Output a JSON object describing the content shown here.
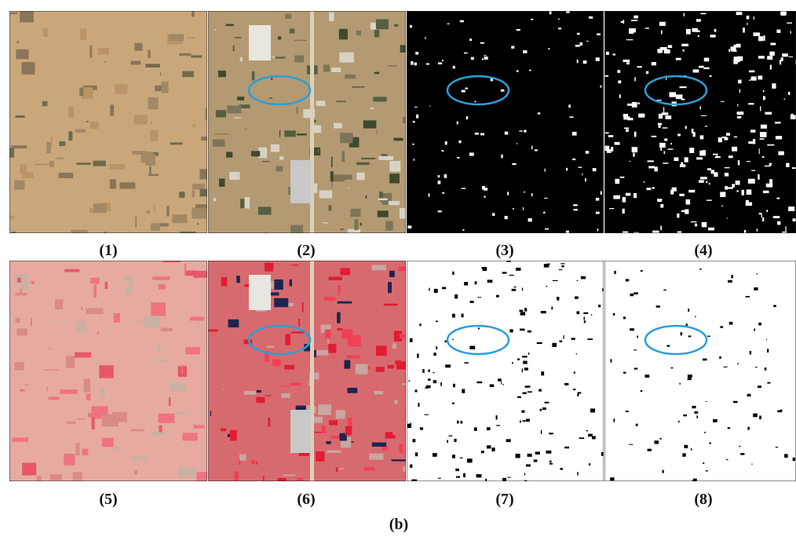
{
  "panels": [
    {
      "label": "(1)"
    },
    {
      "label": "(2)"
    },
    {
      "label": "(3)"
    },
    {
      "label": "(4)"
    },
    {
      "label": "(5)"
    },
    {
      "label": "(6)"
    },
    {
      "label": "(7)"
    },
    {
      "label": "(8)"
    }
  ],
  "figure_label": "(b)"
}
